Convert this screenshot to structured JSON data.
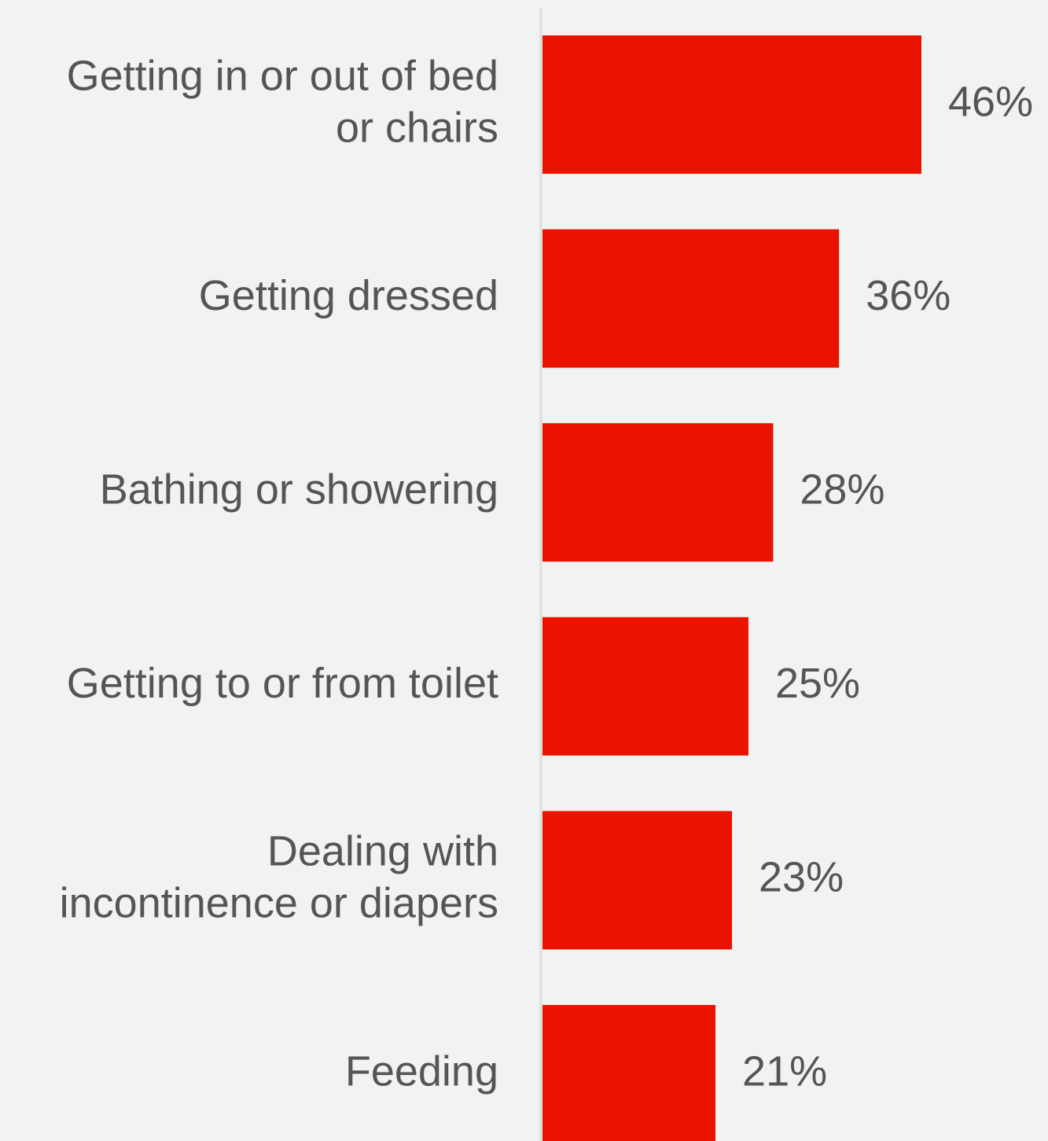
{
  "colors": {
    "background": "#f1f2f2",
    "bar": "#ea1300",
    "axis": "#dcdcdc",
    "text": "#555555"
  },
  "chart_data": {
    "type": "bar",
    "orientation": "horizontal",
    "title": "",
    "xlabel": "",
    "ylabel": "",
    "grid": false,
    "legend": "none",
    "xlim": [
      0,
      46
    ],
    "categories": [
      "Getting in or out of bed or chairs",
      "Getting dressed",
      "Bathing or showering",
      "Getting to or from toilet",
      "Dealing with incontinence or diapers",
      "Feeding"
    ],
    "category_lines": [
      [
        "Getting in or out of bed",
        "or chairs"
      ],
      [
        "Getting dressed"
      ],
      [
        "Bathing or showering"
      ],
      [
        "Getting to or from toilet"
      ],
      [
        "Dealing with",
        "incontinence or diapers"
      ],
      [
        "Feeding"
      ]
    ],
    "values": [
      46,
      36,
      28,
      25,
      23,
      21
    ],
    "value_labels": [
      "46%",
      "36%",
      "28%",
      "25%",
      "23%",
      "21%"
    ]
  }
}
